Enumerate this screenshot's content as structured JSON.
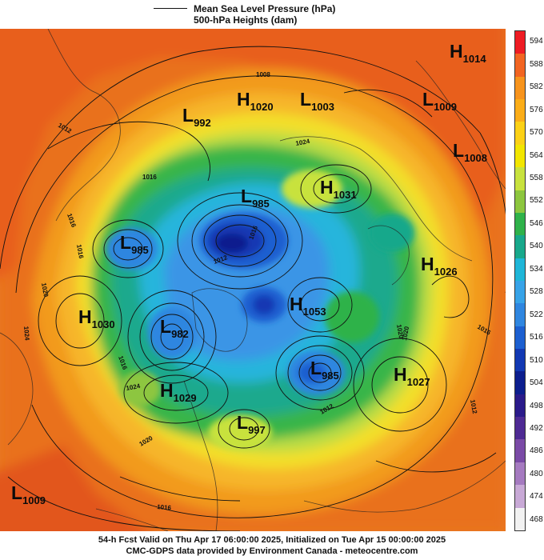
{
  "legend": {
    "line_label": "Mean Sea Level Pressure (hPa)",
    "fill_label": "500-hPa Heights (dam)"
  },
  "colorbar": {
    "ticks": [
      "594",
      "588",
      "582",
      "576",
      "570",
      "564",
      "558",
      "552",
      "546",
      "540",
      "534",
      "528",
      "522",
      "516",
      "510",
      "504",
      "498",
      "492",
      "486",
      "480",
      "474",
      "468"
    ],
    "colors": [
      "#ee1c24",
      "#f26522",
      "#f7941d",
      "#fbad18",
      "#fcd116",
      "#f2e600",
      "#c8e23e",
      "#8dc63f",
      "#2fb24a",
      "#18a88b",
      "#1fb6d8",
      "#37a3e8",
      "#2f86e0",
      "#1c5fd0",
      "#1238b3",
      "#0c1e8e",
      "#2a1a8a",
      "#4e2a94",
      "#7a4aa6",
      "#a57ac0",
      "#c8a9d6",
      "#f2f2f2"
    ]
  },
  "pressure_centers": [
    {
      "type": "H",
      "value": "1014"
    },
    {
      "type": "H",
      "value": "1020"
    },
    {
      "type": "L",
      "value": "1003"
    },
    {
      "type": "L",
      "value": "992"
    },
    {
      "type": "L",
      "value": "1009"
    },
    {
      "type": "L",
      "value": "1008"
    },
    {
      "type": "H",
      "value": "1031"
    },
    {
      "type": "L",
      "value": "985"
    },
    {
      "type": "L",
      "value": "985"
    },
    {
      "type": "H",
      "value": "1026"
    },
    {
      "type": "H",
      "value": "1030"
    },
    {
      "type": "L",
      "value": "982"
    },
    {
      "type": "H",
      "value": "1053"
    },
    {
      "type": "L",
      "value": "985"
    },
    {
      "type": "H",
      "value": "1027"
    },
    {
      "type": "H",
      "value": "1029"
    },
    {
      "type": "L",
      "value": "997"
    },
    {
      "type": "L",
      "value": "1009"
    }
  ],
  "isobar_labels": [
    "1012",
    "1016",
    "1020",
    "1024",
    "1016",
    "1008",
    "1012",
    "1016",
    "1020",
    "1016",
    "1012",
    "1016",
    "1024",
    "1020",
    "1016",
    "1012",
    "1012",
    "1016",
    "1020",
    "1024"
  ],
  "footer": {
    "line1": "54-h Fcst Valid on Thu Apr 17 06:00:00 2025, Initialized on Tue Apr 15 00:00:00 2025",
    "line2": "CMC-GDPS data provided by Environment Canada - meteocentre.com"
  }
}
